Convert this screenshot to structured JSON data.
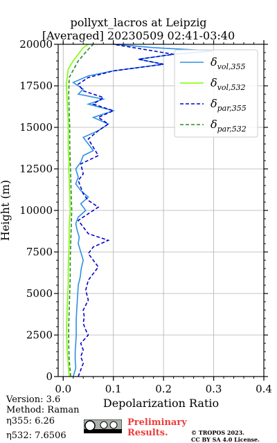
{
  "chart_data": {
    "type": "line",
    "title": "pollyxt_lacros at Leipzig",
    "subtitle": "[Averaged] 20230509 02:41-03:40",
    "xlabel": "Depolarization Ratio",
    "ylabel": "Height (m)",
    "xlim": [
      -0.01,
      0.4
    ],
    "ylim": [
      0,
      20000
    ],
    "xticks": [
      "0.0",
      "0.1",
      "0.2",
      "0.3",
      "0.4"
    ],
    "yticks": [
      "0",
      "2500",
      "5000",
      "7500",
      "10000",
      "12500",
      "15000",
      "17500",
      "20000"
    ],
    "grid": true,
    "legend_position": "top-right",
    "legend": [
      "δvol,355",
      "δvol,532",
      "δpar,355",
      "δpar,532"
    ],
    "series": [
      {
        "name": "δvol,355",
        "color": "#2b8fe6",
        "style": "solid",
        "points": [
          [
            0.02,
            0
          ],
          [
            0.025,
            500
          ],
          [
            0.024,
            1000
          ],
          [
            0.024,
            1500
          ],
          [
            0.025,
            2000
          ],
          [
            0.026,
            2500
          ],
          [
            0.026,
            3000
          ],
          [
            0.026,
            3500
          ],
          [
            0.027,
            4000
          ],
          [
            0.028,
            4500
          ],
          [
            0.029,
            5000
          ],
          [
            0.03,
            5500
          ],
          [
            0.034,
            6000
          ],
          [
            0.036,
            6500
          ],
          [
            0.04,
            7000
          ],
          [
            0.035,
            7500
          ],
          [
            0.03,
            8000
          ],
          [
            0.032,
            8400
          ],
          [
            0.028,
            8800
          ],
          [
            0.025,
            9200
          ],
          [
            0.03,
            9600
          ],
          [
            0.045,
            10000
          ],
          [
            0.035,
            10400
          ],
          [
            0.05,
            10800
          ],
          [
            0.035,
            11200
          ],
          [
            0.025,
            11600
          ],
          [
            0.03,
            12000
          ],
          [
            0.025,
            12500
          ],
          [
            0.035,
            12900
          ],
          [
            0.04,
            13300
          ],
          [
            0.06,
            13600
          ],
          [
            0.05,
            14000
          ],
          [
            0.04,
            14400
          ],
          [
            0.07,
            14800
          ],
          [
            0.09,
            15200
          ],
          [
            0.06,
            15600
          ],
          [
            0.1,
            16000
          ],
          [
            0.05,
            16400
          ],
          [
            0.08,
            16700
          ],
          [
            0.03,
            17000
          ],
          [
            0.04,
            17300
          ],
          [
            0.02,
            17700
          ],
          [
            0.05,
            18100
          ],
          [
            0.1,
            18400
          ],
          [
            0.2,
            18800
          ],
          [
            0.15,
            19100
          ],
          [
            0.22,
            19400
          ],
          [
            0.3,
            19600
          ],
          [
            0.18,
            19800
          ],
          [
            0.1,
            20000
          ]
        ]
      },
      {
        "name": "δvol,532",
        "color": "#7cfc00",
        "style": "solid",
        "points": [
          [
            0.012,
            0
          ],
          [
            0.01,
            800
          ],
          [
            0.008,
            1600
          ],
          [
            0.007,
            2400
          ],
          [
            0.007,
            3200
          ],
          [
            0.008,
            4000
          ],
          [
            0.009,
            4800
          ],
          [
            0.01,
            5600
          ],
          [
            0.01,
            6400
          ],
          [
            0.011,
            7200
          ],
          [
            0.012,
            8000
          ],
          [
            0.012,
            9000
          ],
          [
            0.014,
            10000
          ],
          [
            0.013,
            11000
          ],
          [
            0.012,
            12000
          ],
          [
            0.011,
            12500
          ],
          [
            0.012,
            13000
          ],
          [
            0.01,
            13600
          ],
          [
            0.01,
            14200
          ],
          [
            0.01,
            14800
          ],
          [
            0.01,
            15400
          ],
          [
            0.009,
            16000
          ],
          [
            0.008,
            16600
          ],
          [
            0.007,
            17200
          ],
          [
            0.006,
            17600
          ],
          [
            0.008,
            18000
          ],
          [
            0.01,
            18500
          ],
          [
            0.02,
            19000
          ],
          [
            0.03,
            19400
          ],
          [
            0.04,
            19800
          ],
          [
            0.05,
            20000
          ]
        ]
      },
      {
        "name": "δpar,355",
        "color": "#0000cd",
        "style": "dashed",
        "points": [
          [
            0.03,
            0
          ],
          [
            0.035,
            400
          ],
          [
            0.04,
            800
          ],
          [
            0.035,
            1200
          ],
          [
            0.04,
            1600
          ],
          [
            0.035,
            2000
          ],
          [
            0.05,
            2500
          ],
          [
            0.045,
            2800
          ],
          [
            0.04,
            3200
          ],
          [
            0.042,
            3600
          ],
          [
            0.04,
            4000
          ],
          [
            0.05,
            4600
          ],
          [
            0.045,
            5200
          ],
          [
            0.05,
            5800
          ],
          [
            0.06,
            6200
          ],
          [
            0.07,
            6600
          ],
          [
            0.06,
            7000
          ],
          [
            0.05,
            7400
          ],
          [
            0.06,
            7800
          ],
          [
            0.09,
            8200
          ],
          [
            0.05,
            8600
          ],
          [
            0.04,
            9000
          ],
          [
            0.03,
            9400
          ],
          [
            0.05,
            9800
          ],
          [
            0.07,
            10200
          ],
          [
            0.05,
            10600
          ],
          [
            0.04,
            11000
          ],
          [
            0.035,
            11400
          ],
          [
            0.03,
            11800
          ],
          [
            0.04,
            12200
          ],
          [
            0.035,
            12800
          ],
          [
            0.07,
            13300
          ],
          [
            0.06,
            13800
          ],
          [
            0.05,
            14300
          ],
          [
            0.07,
            14800
          ],
          [
            0.09,
            15200
          ],
          [
            0.07,
            15600
          ],
          [
            0.1,
            16000
          ],
          [
            0.06,
            16400
          ],
          [
            0.08,
            16800
          ],
          [
            0.04,
            17200
          ],
          [
            0.03,
            17600
          ],
          [
            0.05,
            18000
          ],
          [
            0.1,
            18400
          ],
          [
            0.2,
            18800
          ],
          [
            0.15,
            19100
          ],
          [
            0.22,
            19400
          ],
          [
            0.16,
            19700
          ],
          [
            0.1,
            20000
          ]
        ]
      },
      {
        "name": "δpar,532",
        "color": "#228b22",
        "style": "dashed",
        "points": [
          [
            0.015,
            0
          ],
          [
            0.012,
            1000
          ],
          [
            0.011,
            2000
          ],
          [
            0.011,
            3000
          ],
          [
            0.012,
            4000
          ],
          [
            0.013,
            5000
          ],
          [
            0.014,
            6000
          ],
          [
            0.014,
            7000
          ],
          [
            0.015,
            8000
          ],
          [
            0.016,
            9000
          ],
          [
            0.017,
            10000
          ],
          [
            0.016,
            11000
          ],
          [
            0.015,
            12000
          ],
          [
            0.014,
            13000
          ],
          [
            0.013,
            14000
          ],
          [
            0.013,
            15000
          ],
          [
            0.012,
            16000
          ],
          [
            0.011,
            17000
          ],
          [
            0.012,
            18000
          ],
          [
            0.03,
            19000
          ],
          [
            0.05,
            19700
          ],
          [
            0.06,
            20000
          ]
        ]
      }
    ]
  },
  "footer": {
    "version": "Version: 3.6",
    "method": "Method: Raman",
    "eta355": "η355:   6.26",
    "eta532": "η532: 7.6506",
    "preliminary_1": "Preliminary",
    "preliminary_2": "Results.",
    "copyright_1": "© TROPOS 2023.",
    "copyright_2": "CC BY SA 4.0 License."
  }
}
